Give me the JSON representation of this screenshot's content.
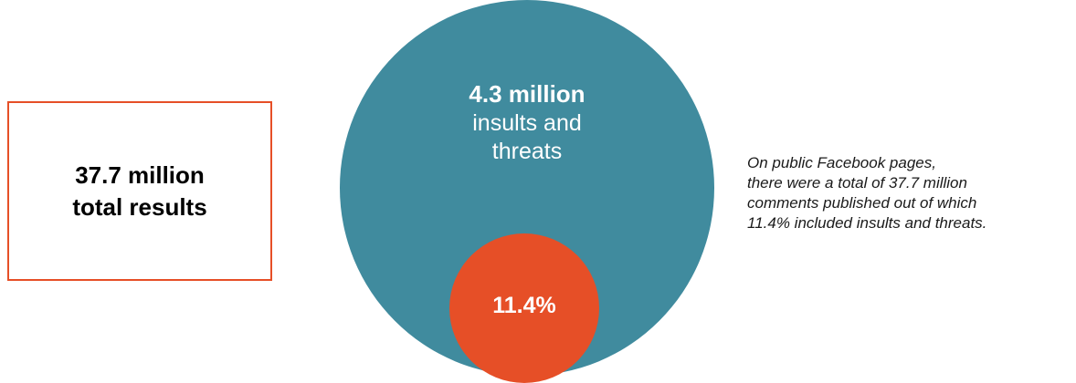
{
  "total_box": {
    "line1": "37.7 million",
    "line2": "total results"
  },
  "large_circle": {
    "value": "4.3 million",
    "label_line1": "insults and",
    "label_line2": "threats"
  },
  "small_circle": {
    "value": "11.4%"
  },
  "caption": {
    "lines": [
      "On public Facebook pages,",
      "there were a total of 37.7 million",
      "comments published out of which",
      "11.4% included insults and threats."
    ]
  },
  "colors": {
    "accent_orange": "#e64f27",
    "circle_teal": "#408b9e",
    "text_dark": "#000000",
    "text_light": "#ffffff"
  }
}
